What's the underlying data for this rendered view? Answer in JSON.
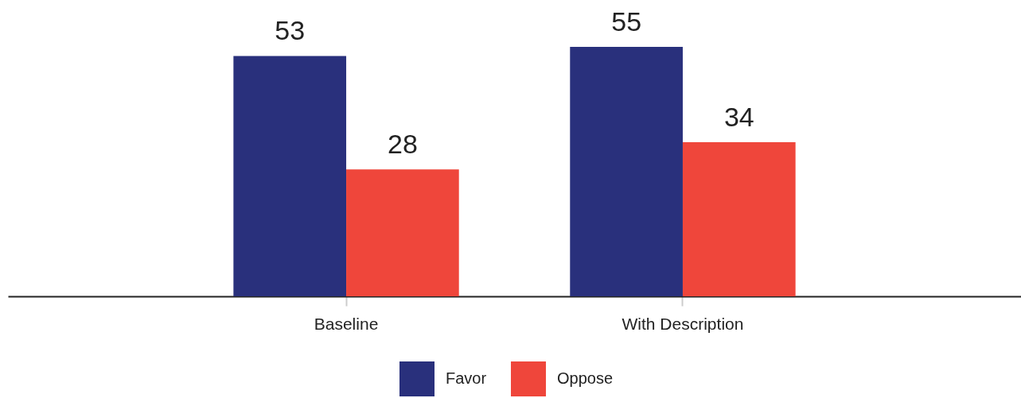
{
  "chart_data": {
    "type": "bar",
    "categories": [
      "Baseline",
      "With Description"
    ],
    "series": [
      {
        "name": "Favor",
        "color": "#29307c",
        "values": [
          53,
          55
        ]
      },
      {
        "name": "Oppose",
        "color": "#ef463b",
        "values": [
          28,
          34
        ]
      }
    ],
    "data_labels": true,
    "grid": false,
    "legend": "bottom",
    "tick_labels": "x"
  }
}
